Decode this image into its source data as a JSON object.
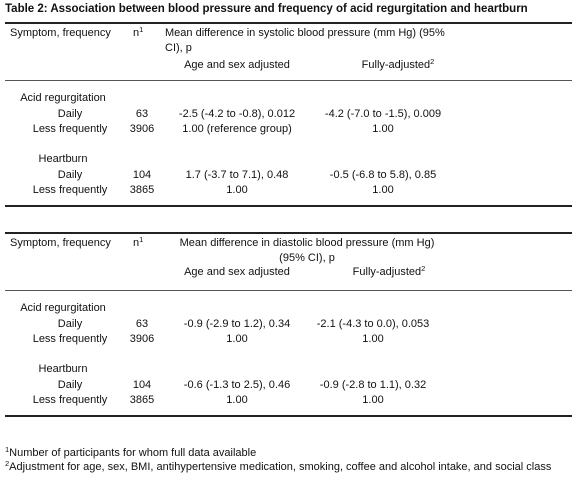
{
  "title": "Table 2: Association between blood pressure and frequency of acid regurgitation and heartburn",
  "tables": [
    {
      "header": {
        "symptom": "Symptom, frequency",
        "n": "n",
        "n_sup": "1",
        "measure": [
          "Mean difference in systolic blood pressure (mm Hg) (95%",
          "CI), p"
        ],
        "adjusted": "Age and sex adjusted",
        "fully": "Fully-adjusted",
        "fully_sup": "2"
      },
      "groups": [
        {
          "label": "Acid regurgitation",
          "rows": [
            [
              "Daily",
              "63",
              "-2.5 (-4.2 to -0.8), 0.012",
              "-4.2 (-7.0 to -1.5), 0.009"
            ],
            [
              "Less frequently",
              "3906",
              "1.00 (reference group)",
              "1.00"
            ]
          ]
        },
        {
          "label": "Heartburn",
          "rows": [
            [
              "Daily",
              "104",
              "1.7 (-3.7 to 7.1), 0.48",
              "-0.5 (-6.8 to 5.8), 0.85"
            ],
            [
              "Less frequently",
              "3865",
              "1.00",
              "1.00"
            ]
          ]
        }
      ]
    },
    {
      "header": {
        "symptom": "Symptom, frequency",
        "n": "n",
        "n_sup": "1",
        "measure": [
          "Mean difference in diastolic blood pressure (mm Hg)",
          "(95% CI), p"
        ],
        "adjusted": "Age and sex adjusted",
        "fully": "Fully-adjusted",
        "fully_sup": "2"
      },
      "groups": [
        {
          "label": "Acid regurgitation",
          "rows": [
            [
              "Daily",
              "63",
              "-0.9 (-2.9 to 1.2), 0.34",
              "-2.1 (-4.3 to 0.0), 0.053"
            ],
            [
              "Less frequently",
              "3906",
              "1.00",
              "1.00"
            ]
          ]
        },
        {
          "label": "Heartburn",
          "rows": [
            [
              "Daily",
              "104",
              "-0.6 (-1.3 to 2.5), 0.46",
              "-0.9 (-2.8 to 1.1), 0.32"
            ],
            [
              "Less frequently",
              "3865",
              "1.00",
              "1.00"
            ]
          ]
        }
      ]
    }
  ],
  "footnotes": [
    {
      "mark": "1",
      "text": "Number of participants for whom full data available"
    },
    {
      "mark": "2",
      "text": "Adjustment for age, sex, BMI, antihypertensive medication, smoking, coffee and alcohol intake, and social class"
    }
  ]
}
